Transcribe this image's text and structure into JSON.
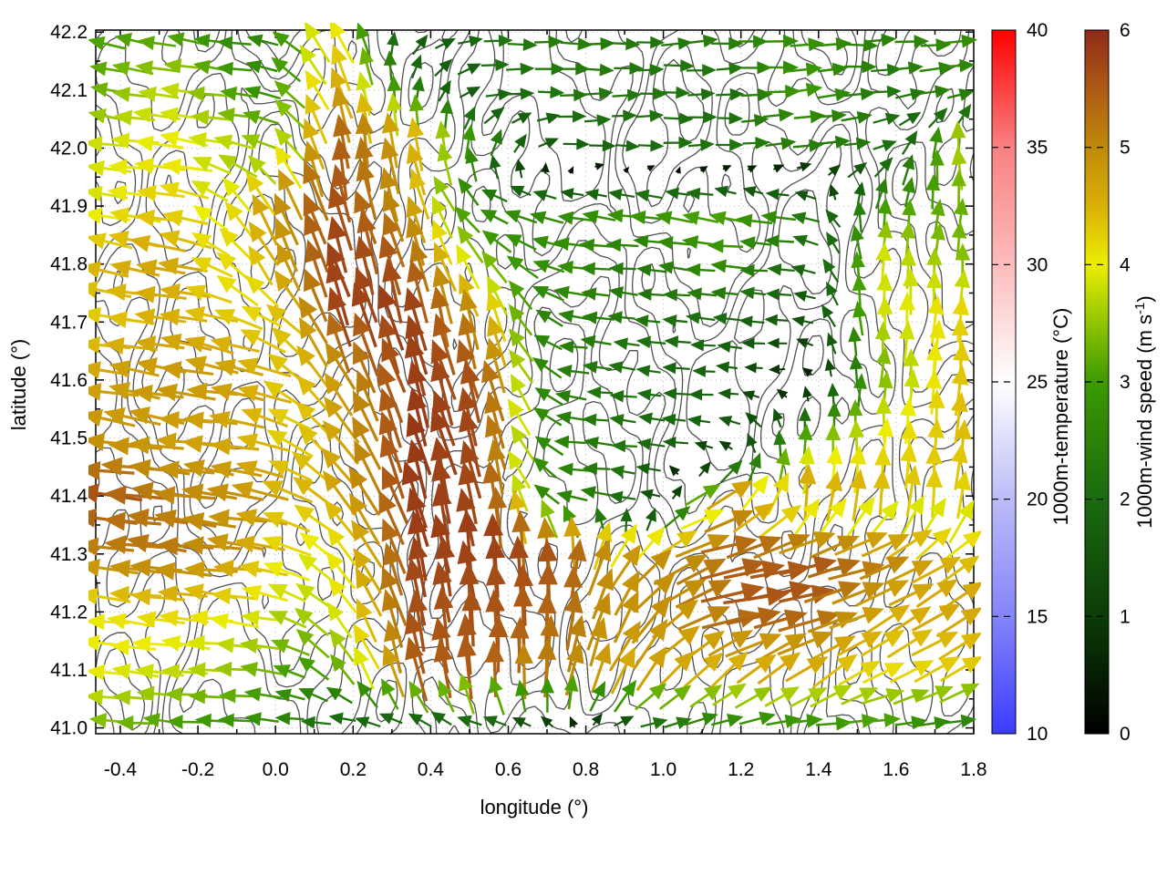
{
  "figure": {
    "background": "#ffffff",
    "frame_color": "#000000",
    "grid_color": "#b8b8b8"
  },
  "chart_data": {
    "type": "vector_field_map",
    "x_axis": {
      "label": "longitude (°)",
      "min": -0.4635,
      "max": 1.8,
      "tick_values": [
        -0.4,
        -0.2,
        0.0,
        0.2,
        0.4,
        0.6,
        0.8,
        1.0,
        1.2,
        1.4,
        1.6,
        1.8
      ],
      "tick_labels": [
        "-0.4",
        "-0.2",
        "0.0",
        "0.2",
        "0.4",
        "0.6",
        "0.8",
        "1.0",
        "1.2",
        "1.4",
        "1.6",
        "1.8"
      ],
      "minor_step": 0.1
    },
    "y_axis": {
      "label": "latitude (°)",
      "min": 40.99,
      "max": 42.2035,
      "tick_values": [
        41.0,
        41.1,
        41.2,
        41.3,
        41.4,
        41.5,
        41.6,
        41.7,
        41.8,
        41.9,
        42.0,
        42.1,
        42.2
      ],
      "tick_labels": [
        "41.0",
        "41.1",
        "41.2",
        "41.3",
        "41.4",
        "41.5",
        "41.6",
        "41.7",
        "41.8",
        "41.9",
        "42.0",
        "42.1",
        "42.2"
      ],
      "minor_step": 0.05
    },
    "colorbars": [
      {
        "id": "temperature",
        "label": "1000m-temperature (°C)",
        "min": 10,
        "max": 40,
        "tick_values": [
          10,
          15,
          20,
          25,
          30,
          35,
          40
        ],
        "tick_labels": [
          "10",
          "15",
          "20",
          "25",
          "30",
          "35",
          "40"
        ],
        "stops": [
          {
            "v": 10,
            "c": "#3b3bff"
          },
          {
            "v": 15,
            "c": "#8484fa"
          },
          {
            "v": 20,
            "c": "#bcbcf8"
          },
          {
            "v": 25,
            "c": "#ffffff"
          },
          {
            "v": 30,
            "c": "#fcbcbc"
          },
          {
            "v": 35,
            "c": "#f98181"
          },
          {
            "v": 40,
            "c": "#fe0000"
          }
        ]
      },
      {
        "id": "wind_speed",
        "label": "1000m-wind speed (m s⁻¹)",
        "label_main": "1000m-wind speed (m s",
        "label_sup": "-1",
        "label_close": ")",
        "min": 0,
        "max": 6,
        "tick_values": [
          0,
          1,
          2,
          3,
          4,
          5,
          6
        ],
        "tick_labels": [
          "0",
          "1",
          "2",
          "3",
          "4",
          "5",
          "6"
        ],
        "stops": [
          {
            "v": 0.0,
            "c": "#000000"
          },
          {
            "v": 1.0,
            "c": "#0b3c06"
          },
          {
            "v": 2.0,
            "c": "#1a6a10"
          },
          {
            "v": 3.0,
            "c": "#3c9a00"
          },
          {
            "v": 3.5,
            "c": "#90c400"
          },
          {
            "v": 4.0,
            "c": "#eded00"
          },
          {
            "v": 4.5,
            "c": "#d9b007"
          },
          {
            "v": 5.0,
            "c": "#c08a0a"
          },
          {
            "v": 5.5,
            "c": "#ad5a16"
          },
          {
            "v": 6.0,
            "c": "#8f2a18"
          }
        ]
      }
    ],
    "wind_grid": {
      "units": "m s-1",
      "lon_start": -0.45,
      "lon_step": 0.2,
      "lat_start": 42.2,
      "lat_step": -0.1,
      "rows": [
        [
          [
            -3.0,
            0.5
          ],
          [
            -3.0,
            0.5
          ],
          [
            -2.5,
            0.3
          ],
          [
            -2.2,
            3.8
          ],
          [
            1.2,
            1.2
          ],
          [
            2.2,
            0.1
          ],
          [
            2.5,
            0.0
          ],
          [
            2.2,
            0.0
          ],
          [
            2.5,
            0.2
          ],
          [
            2.8,
            0.2
          ],
          [
            2.5,
            0.0
          ],
          [
            2.7,
            0.3
          ]
        ],
        [
          [
            -3.2,
            0.4
          ],
          [
            -3.8,
            0.5
          ],
          [
            -2.8,
            0.4
          ],
          [
            -1.8,
            4.4
          ],
          [
            0.3,
            2.4
          ],
          [
            2.0,
            0.2
          ],
          [
            2.3,
            0.0
          ],
          [
            2.3,
            0.1
          ],
          [
            2.0,
            0.0
          ],
          [
            3.0,
            0.3
          ],
          [
            2.2,
            0.2
          ],
          [
            2.6,
            0.2
          ]
        ],
        [
          [
            -3.8,
            0.5
          ],
          [
            -4.0,
            0.6
          ],
          [
            -3.6,
            0.9
          ],
          [
            -0.6,
            5.5
          ],
          [
            -1.0,
            4.6
          ],
          [
            0.5,
            2.6
          ],
          [
            1.8,
            0.0
          ],
          [
            2.0,
            0.0
          ],
          [
            2.2,
            0.1
          ],
          [
            2.4,
            0.2
          ],
          [
            2.2,
            0.4
          ],
          [
            -0.5,
            3.8
          ]
        ],
        [
          [
            -3.8,
            0.6
          ],
          [
            -4.3,
            0.8
          ],
          [
            -1.8,
            4.2
          ],
          [
            -1.6,
            5.4
          ],
          [
            -1.3,
            4.6
          ],
          [
            -2.6,
            0.8
          ],
          [
            -2.6,
            0.5
          ],
          [
            -3.0,
            0.4
          ],
          [
            -3.2,
            0.4
          ],
          [
            -2.6,
            0.3
          ],
          [
            0.5,
            2.8
          ],
          [
            0.3,
            3.2
          ]
        ],
        [
          [
            -4.4,
            0.8
          ],
          [
            -4.6,
            0.9
          ],
          [
            -2.5,
            3.5
          ],
          [
            -1.8,
            5.5
          ],
          [
            -1.5,
            5.2
          ],
          [
            -2.2,
            2.6
          ],
          [
            -2.8,
            0.4
          ],
          [
            -2.2,
            0.2
          ],
          [
            -2.8,
            0.3
          ],
          [
            -2.0,
            0.2
          ],
          [
            0.0,
            3.9
          ],
          [
            0.2,
            3.4
          ]
        ],
        [
          [
            -4.2,
            0.6
          ],
          [
            -4.5,
            0.7
          ],
          [
            -4.0,
            1.5
          ],
          [
            -1.8,
            5.4
          ],
          [
            -1.6,
            5.6
          ],
          [
            -1.2,
            4.6
          ],
          [
            -2.5,
            0.3
          ],
          [
            -2.2,
            0.2
          ],
          [
            -2.0,
            0.2
          ],
          [
            -1.6,
            0.1
          ],
          [
            0.1,
            3.8
          ],
          [
            0.2,
            4.2
          ]
        ],
        [
          [
            -4.6,
            0.8
          ],
          [
            -4.8,
            0.8
          ],
          [
            -4.6,
            1.0
          ],
          [
            -2.5,
            4.0
          ],
          [
            -1.8,
            5.5
          ],
          [
            -1.5,
            5.3
          ],
          [
            -2.4,
            0.3
          ],
          [
            -2.0,
            0.2
          ],
          [
            -1.8,
            0.1
          ],
          [
            -0.4,
            0.0
          ],
          [
            0.2,
            3.2
          ],
          [
            0.3,
            4.3
          ]
        ],
        [
          [
            -4.8,
            0.8
          ],
          [
            -4.7,
            0.6
          ],
          [
            -4.5,
            0.7
          ],
          [
            -2.8,
            3.6
          ],
          [
            -1.8,
            5.6
          ],
          [
            -1.4,
            5.5
          ],
          [
            -2.5,
            0.3
          ],
          [
            -2.1,
            0.2
          ],
          [
            -1.8,
            0.2
          ],
          [
            0.0,
            2.8
          ],
          [
            0.2,
            3.9
          ],
          [
            0.3,
            4.4
          ]
        ],
        [
          [
            -5.6,
            0.8
          ],
          [
            -5.0,
            0.7
          ],
          [
            -4.8,
            0.8
          ],
          [
            -3.0,
            3.5
          ],
          [
            -1.6,
            5.6
          ],
          [
            -0.8,
            5.6
          ],
          [
            -2.6,
            0.3
          ],
          [
            -2.0,
            0.2
          ],
          [
            4.5,
            2.0
          ],
          [
            0.5,
            4.6
          ],
          [
            0.4,
            4.4
          ],
          [
            0.5,
            4.2
          ]
        ],
        [
          [
            -5.0,
            0.6
          ],
          [
            -5.2,
            0.7
          ],
          [
            -4.6,
            0.6
          ],
          [
            -2.8,
            2.8
          ],
          [
            -1.5,
            5.6
          ],
          [
            -0.5,
            5.8
          ],
          [
            0.0,
            5.6
          ],
          [
            3.5,
            3.5
          ],
          [
            5.2,
            1.5
          ],
          [
            5.4,
            1.2
          ],
          [
            5.0,
            1.5
          ],
          [
            3.5,
            2.5
          ]
        ],
        [
          [
            -4.0,
            0.5
          ],
          [
            -4.2,
            0.5
          ],
          [
            -4.0,
            0.5
          ],
          [
            -2.5,
            3.0
          ],
          [
            -1.2,
            5.5
          ],
          [
            -0.3,
            5.6
          ],
          [
            0.2,
            5.4
          ],
          [
            3.0,
            4.0
          ],
          [
            5.4,
            1.2
          ],
          [
            5.5,
            1.0
          ],
          [
            4.0,
            2.2
          ],
          [
            4.0,
            2.4
          ]
        ],
        [
          [
            -4.0,
            0.4
          ],
          [
            -3.8,
            0.4
          ],
          [
            -3.4,
            0.4
          ],
          [
            -2.2,
            2.2
          ],
          [
            -1.2,
            5.4
          ],
          [
            -0.3,
            5.5
          ],
          [
            0.8,
            5.0
          ],
          [
            2.8,
            3.8
          ],
          [
            3.4,
            3.0
          ],
          [
            3.8,
            2.6
          ],
          [
            3.6,
            2.2
          ],
          [
            3.8,
            2.0
          ]
        ],
        [
          [
            -3.4,
            0.3
          ],
          [
            -3.0,
            0.2
          ],
          [
            -2.8,
            0.2
          ],
          [
            -2.0,
            0.1
          ],
          [
            -1.8,
            0.2
          ],
          [
            -2.2,
            0.1
          ],
          [
            -0.6,
            0.3
          ],
          [
            2.0,
            0.3
          ],
          [
            2.6,
            0.3
          ],
          [
            2.8,
            0.3
          ],
          [
            3.0,
            0.3
          ],
          [
            2.4,
            0.2
          ]
        ]
      ]
    },
    "contours": {
      "color": "#3f3f3f",
      "levels": [
        -1.8,
        -1.2,
        -0.6,
        0,
        0.6,
        1.2,
        1.8
      ],
      "components": [
        {
          "w": 1.0,
          "a": 3.0,
          "b": 4.0,
          "p": 0.8
        },
        {
          "w": 0.85,
          "a": 7.5,
          "b": -5.5,
          "p": 2.1
        },
        {
          "w": 0.65,
          "a": 12.0,
          "b": 9.0,
          "p": 4.4
        },
        {
          "w": 0.5,
          "a": 19.0,
          "b": -14.0,
          "p": 1.2
        },
        {
          "w": 0.4,
          "a": 28.0,
          "b": 22.0,
          "p": 5.3
        },
        {
          "w": 0.3,
          "a": 41.0,
          "b": -33.0,
          "p": 3.0
        }
      ]
    }
  }
}
